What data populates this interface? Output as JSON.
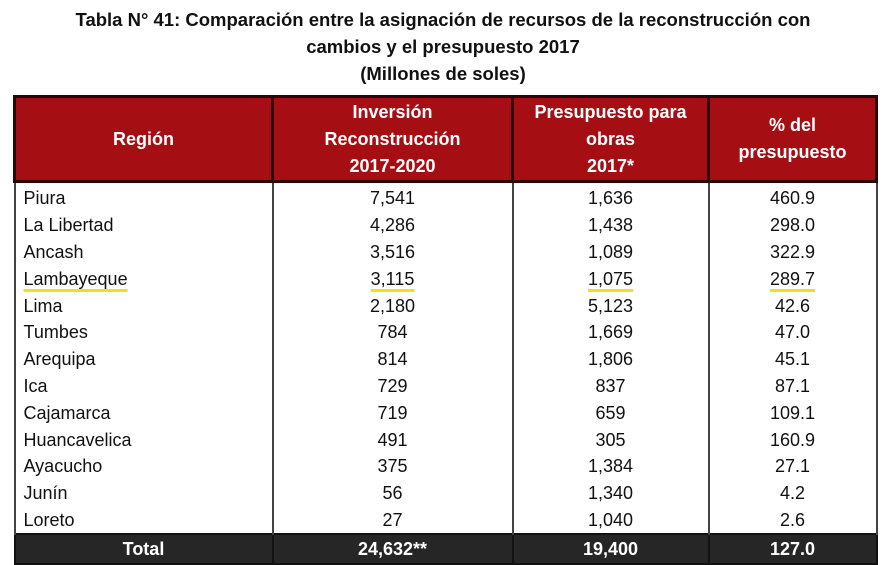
{
  "caption": {
    "line1": "Tabla N° 41: Comparación entre la asignación de recursos de la reconstrucción con",
    "line2": "cambios y el presupuesto 2017",
    "line3": "(Millones de soles)"
  },
  "table": {
    "headers": {
      "region": "Región",
      "investment": [
        "Inversión",
        "Reconstrucción",
        "2017-2020"
      ],
      "budget": [
        "Presupuesto para",
        "obras",
        "2017*"
      ],
      "percent": [
        "% del",
        "presupuesto"
      ]
    },
    "rows": [
      {
        "region": "Piura",
        "investment": "7,541",
        "budget": "1,636",
        "percent": "460.9"
      },
      {
        "region": "La Libertad",
        "investment": "4,286",
        "budget": "1,438",
        "percent": "298.0"
      },
      {
        "region": "Ancash",
        "investment": "3,516",
        "budget": "1,089",
        "percent": "322.9"
      },
      {
        "region": "Lambayeque",
        "investment": "3,115",
        "budget": "1,075",
        "percent": "289.7"
      },
      {
        "region": "Lima",
        "investment": "2,180",
        "budget": "5,123",
        "percent": "42.6"
      },
      {
        "region": "Tumbes",
        "investment": "784",
        "budget": "1,669",
        "percent": "47.0"
      },
      {
        "region": "Arequipa",
        "investment": "814",
        "budget": "1,806",
        "percent": "45.1"
      },
      {
        "region": "Ica",
        "investment": "729",
        "budget": "837",
        "percent": "87.1"
      },
      {
        "region": "Cajamarca",
        "investment": "719",
        "budget": "659",
        "percent": "109.1"
      },
      {
        "region": "Huancavelica",
        "investment": "491",
        "budget": "305",
        "percent": "160.9"
      },
      {
        "region": "Ayacucho",
        "investment": "375",
        "budget": "1,384",
        "percent": "27.1"
      },
      {
        "region": "Junín",
        "investment": "56",
        "budget": "1,340",
        "percent": "4.2"
      },
      {
        "region": "Loreto",
        "investment": "27",
        "budget": "1,040",
        "percent": "2.6"
      }
    ],
    "total": {
      "label": "Total",
      "investment": "24,632**",
      "budget": "19,400",
      "percent": "127.0"
    }
  },
  "highlight": {
    "color": "#f2df18"
  },
  "colors": {
    "header_bg": "#a50f14",
    "total_bg": "#262626"
  }
}
